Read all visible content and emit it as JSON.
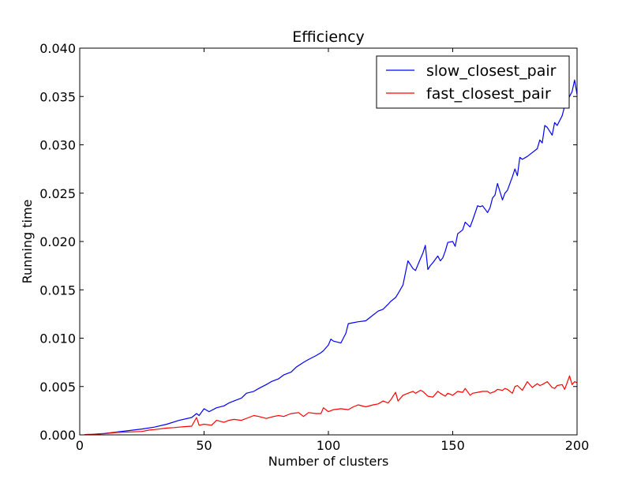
{
  "chart_data": {
    "type": "line",
    "title": "Efficiency",
    "xlabel": "Number of clusters",
    "ylabel": "Running time",
    "xlim": [
      0,
      200
    ],
    "ylim": [
      0,
      0.04
    ],
    "xticks": [
      0,
      50,
      100,
      150,
      200
    ],
    "xtick_labels": [
      "0",
      "50",
      "100",
      "150",
      "200"
    ],
    "yticks": [
      0,
      0.005,
      0.01,
      0.015,
      0.02,
      0.025,
      0.03,
      0.035,
      0.04
    ],
    "ytick_labels": [
      "0.000",
      "0.005",
      "0.010",
      "0.015",
      "0.020",
      "0.025",
      "0.030",
      "0.035",
      "0.040"
    ],
    "grid": false,
    "legend_position": "top-right",
    "series": [
      {
        "name": "slow_closest_pair",
        "color": "#0000ff",
        "x": [
          2,
          5,
          10,
          15,
          20,
          25,
          30,
          35,
          40,
          45,
          47,
          48,
          50,
          52,
          55,
          58,
          60,
          62,
          65,
          67,
          70,
          72,
          75,
          77,
          80,
          82,
          85,
          87,
          90,
          92,
          95,
          97,
          98,
          100,
          101,
          102,
          105,
          107,
          108,
          110,
          112,
          115,
          117,
          120,
          122,
          124,
          125,
          127,
          128,
          130,
          131,
          132,
          134,
          135,
          137,
          138,
          139,
          140,
          141,
          142,
          144,
          145,
          146,
          147,
          148,
          150,
          151,
          152,
          154,
          155,
          157,
          158,
          160,
          161,
          162,
          164,
          165,
          166,
          167,
          168,
          170,
          171,
          172,
          174,
          175,
          176,
          177,
          178,
          180,
          182,
          184,
          185,
          186,
          187,
          188,
          190,
          191,
          192,
          194,
          195,
          196,
          197,
          198,
          199,
          200
        ],
        "values": [
          3e-05,
          6e-05,
          0.00015,
          0.0003,
          0.00045,
          0.0006,
          0.0008,
          0.0011,
          0.0015,
          0.0018,
          0.0022,
          0.002,
          0.0027,
          0.0024,
          0.0028,
          0.003,
          0.0033,
          0.0035,
          0.0038,
          0.0043,
          0.0045,
          0.0048,
          0.0052,
          0.0055,
          0.0058,
          0.0062,
          0.0065,
          0.007,
          0.0075,
          0.0078,
          0.0082,
          0.0085,
          0.0087,
          0.0093,
          0.0099,
          0.0097,
          0.0095,
          0.0105,
          0.0115,
          0.0116,
          0.0117,
          0.0118,
          0.0122,
          0.0128,
          0.013,
          0.0135,
          0.0138,
          0.0142,
          0.0146,
          0.0155,
          0.0168,
          0.018,
          0.0172,
          0.017,
          0.0182,
          0.0188,
          0.0196,
          0.0171,
          0.0175,
          0.0178,
          0.0185,
          0.018,
          0.0183,
          0.019,
          0.0199,
          0.02,
          0.0195,
          0.0208,
          0.0212,
          0.022,
          0.0215,
          0.0222,
          0.0237,
          0.0236,
          0.0237,
          0.023,
          0.0235,
          0.0245,
          0.0248,
          0.026,
          0.0243,
          0.025,
          0.0253,
          0.0267,
          0.0275,
          0.0268,
          0.0287,
          0.0285,
          0.0288,
          0.0292,
          0.0296,
          0.0305,
          0.0302,
          0.032,
          0.0318,
          0.031,
          0.0323,
          0.032,
          0.033,
          0.034,
          0.0345,
          0.035,
          0.0355,
          0.0367,
          0.0352
        ]
      },
      {
        "name": "fast_closest_pair",
        "color": "#ff0000",
        "x": [
          2,
          5,
          10,
          15,
          20,
          25,
          28,
          30,
          35,
          38,
          40,
          42,
          45,
          47,
          48,
          50,
          53,
          55,
          58,
          60,
          62,
          65,
          68,
          70,
          72,
          75,
          78,
          80,
          82,
          85,
          88,
          90,
          92,
          95,
          97,
          98,
          100,
          102,
          105,
          108,
          110,
          112,
          115,
          118,
          120,
          122,
          124,
          125,
          127,
          128,
          130,
          132,
          134,
          135,
          137,
          138,
          140,
          142,
          144,
          145,
          147,
          148,
          150,
          152,
          154,
          155,
          157,
          158,
          160,
          162,
          164,
          165,
          167,
          168,
          170,
          171,
          172,
          174,
          175,
          176,
          178,
          180,
          182,
          184,
          185,
          186,
          188,
          190,
          191,
          192,
          194,
          195,
          196,
          197,
          198,
          199,
          200
        ],
        "values": [
          3e-05,
          6e-05,
          0.00012,
          0.00025,
          0.0003,
          0.00035,
          0.0005,
          0.00055,
          0.0007,
          0.00075,
          0.0008,
          0.00085,
          0.0009,
          0.0018,
          0.001,
          0.0011,
          0.001,
          0.0015,
          0.0013,
          0.0015,
          0.0016,
          0.0015,
          0.0018,
          0.002,
          0.0019,
          0.0017,
          0.0019,
          0.002,
          0.0019,
          0.0022,
          0.0023,
          0.0019,
          0.0023,
          0.0022,
          0.0022,
          0.0028,
          0.0024,
          0.0026,
          0.0027,
          0.0026,
          0.0029,
          0.0031,
          0.0029,
          0.0031,
          0.0032,
          0.0035,
          0.0033,
          0.0036,
          0.0044,
          0.0035,
          0.0041,
          0.0043,
          0.0045,
          0.0043,
          0.0046,
          0.0045,
          0.004,
          0.0039,
          0.0045,
          0.0043,
          0.004,
          0.0043,
          0.0041,
          0.0045,
          0.0044,
          0.0048,
          0.0041,
          0.0043,
          0.0044,
          0.0045,
          0.0045,
          0.0043,
          0.0045,
          0.0047,
          0.0046,
          0.0048,
          0.0047,
          0.0043,
          0.005,
          0.0051,
          0.0046,
          0.0055,
          0.0049,
          0.0053,
          0.0051,
          0.0052,
          0.0055,
          0.0049,
          0.0048,
          0.0051,
          0.0052,
          0.0047,
          0.0054,
          0.0061,
          0.0052,
          0.0055,
          0.0054
        ]
      }
    ]
  }
}
